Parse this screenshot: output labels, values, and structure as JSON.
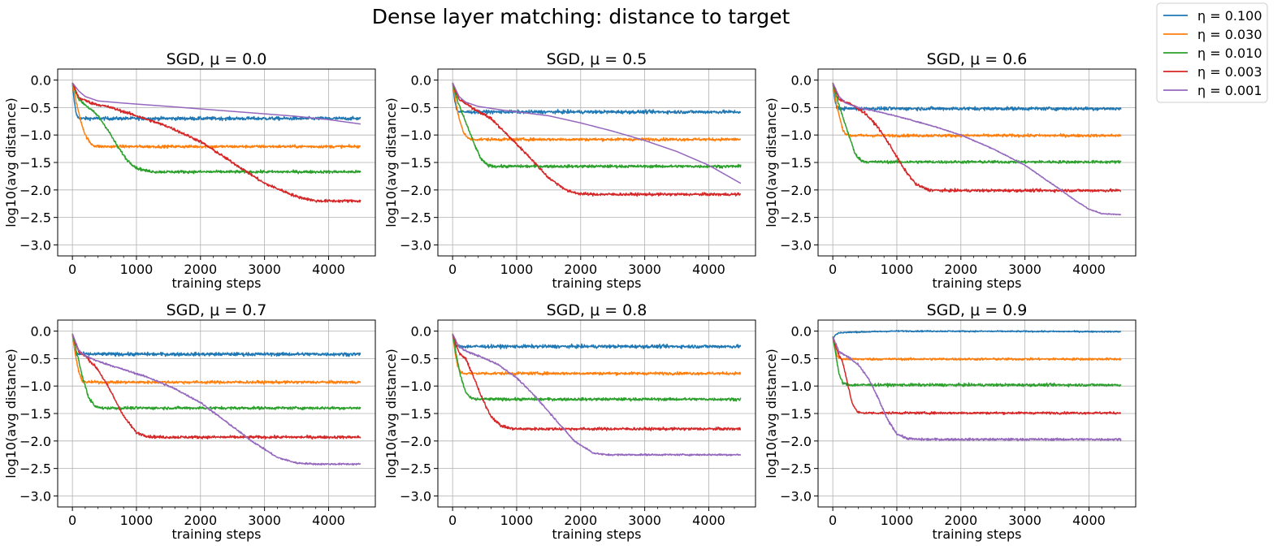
{
  "title": "Dense layer matching: distance to target",
  "legend": {
    "placement": "top-right, outside axes",
    "entries": [
      {
        "label": "η = 0.100",
        "color": "#1f77b4"
      },
      {
        "label": "η = 0.030",
        "color": "#ff7f0e"
      },
      {
        "label": "η = 0.010",
        "color": "#2ca02c"
      },
      {
        "label": "η = 0.003",
        "color": "#d62728"
      },
      {
        "label": "η = 0.001",
        "color": "#9467bd"
      }
    ]
  },
  "chart_data": [
    {
      "type": "line",
      "title": "SGD, μ = 0.0",
      "xlabel": "training steps",
      "ylabel": "log10(avg distance)",
      "xlim": [
        -230,
        4730
      ],
      "ylim": [
        -3.2,
        0.2
      ],
      "xticks": [
        0,
        1000,
        2000,
        3000,
        4000
      ],
      "xtick_labels": [
        "0",
        "1000",
        "2000",
        "3000",
        "4000"
      ],
      "yticks": [
        0.0,
        -0.5,
        -1.0,
        -1.5,
        -2.0,
        -2.5,
        -3.0
      ],
      "ytick_labels": [
        "0.0",
        "−0.5",
        "−1.0",
        "−1.5",
        "−2.0",
        "−2.5",
        "−3.0"
      ],
      "grid": true,
      "series": [
        {
          "name": "η = 0.100",
          "color": "#1f77b4",
          "noise": 0.03,
          "x": [
            0,
            30,
            60,
            100,
            150,
            200,
            4500
          ],
          "y": [
            -0.05,
            -0.4,
            -0.62,
            -0.7,
            -0.7,
            -0.7,
            -0.7
          ]
        },
        {
          "name": "η = 0.030",
          "color": "#ff7f0e",
          "noise": 0.025,
          "x": [
            0,
            60,
            120,
            200,
            280,
            350,
            450,
            4500
          ],
          "y": [
            -0.05,
            -0.4,
            -0.7,
            -1.0,
            -1.15,
            -1.2,
            -1.21,
            -1.21
          ]
        },
        {
          "name": "η = 0.010",
          "color": "#2ca02c",
          "noise": 0.025,
          "x": [
            0,
            100,
            250,
            400,
            550,
            700,
            850,
            1000,
            1150,
            1300,
            4500
          ],
          "y": [
            -0.05,
            -0.35,
            -0.5,
            -0.65,
            -0.9,
            -1.2,
            -1.45,
            -1.6,
            -1.65,
            -1.67,
            -1.67
          ]
        },
        {
          "name": "η = 0.003",
          "color": "#d62728",
          "noise": 0.025,
          "x": [
            0,
            100,
            300,
            600,
            1000,
            1500,
            2000,
            2500,
            3000,
            3500,
            3800,
            4000,
            4500
          ],
          "y": [
            -0.05,
            -0.32,
            -0.42,
            -0.5,
            -0.65,
            -0.85,
            -1.12,
            -1.5,
            -1.88,
            -2.12,
            -2.2,
            -2.2,
            -2.2
          ]
        },
        {
          "name": "η = 0.001",
          "color": "#9467bd",
          "noise": 0.0,
          "x": [
            0,
            100,
            200,
            400,
            800,
            1500,
            2500,
            3500,
            4000,
            4500
          ],
          "y": [
            -0.05,
            -0.2,
            -0.3,
            -0.38,
            -0.42,
            -0.48,
            -0.57,
            -0.66,
            -0.72,
            -0.8
          ]
        }
      ]
    },
    {
      "type": "line",
      "title": "SGD, μ = 0.5",
      "xlabel": "training steps",
      "ylabel": "log10(avg distance)",
      "xlim": [
        -230,
        4730
      ],
      "ylim": [
        -3.2,
        0.2
      ],
      "xticks": [
        0,
        1000,
        2000,
        3000,
        4000
      ],
      "xtick_labels": [
        "0",
        "1000",
        "2000",
        "3000",
        "4000"
      ],
      "yticks": [
        0.0,
        -0.5,
        -1.0,
        -1.5,
        -2.0,
        -2.5,
        -3.0
      ],
      "ytick_labels": [
        "0.0",
        "−0.5",
        "−1.0",
        "−1.5",
        "−2.0",
        "−2.5",
        "−3.0"
      ],
      "grid": true,
      "series": [
        {
          "name": "η = 0.100",
          "color": "#1f77b4",
          "noise": 0.03,
          "x": [
            0,
            30,
            60,
            100,
            150,
            4500
          ],
          "y": [
            -0.05,
            -0.35,
            -0.52,
            -0.58,
            -0.58,
            -0.58
          ]
        },
        {
          "name": "η = 0.030",
          "color": "#ff7f0e",
          "noise": 0.025,
          "x": [
            0,
            50,
            100,
            170,
            250,
            350,
            4500
          ],
          "y": [
            -0.05,
            -0.4,
            -0.7,
            -0.95,
            -1.07,
            -1.08,
            -1.08
          ]
        },
        {
          "name": "η = 0.010",
          "color": "#2ca02c",
          "noise": 0.025,
          "x": [
            0,
            80,
            150,
            250,
            350,
            450,
            550,
            650,
            4500
          ],
          "y": [
            -0.05,
            -0.4,
            -0.6,
            -0.9,
            -1.2,
            -1.45,
            -1.55,
            -1.57,
            -1.57
          ]
        },
        {
          "name": "η = 0.003",
          "color": "#d62728",
          "noise": 0.025,
          "x": [
            0,
            100,
            300,
            600,
            900,
            1200,
            1500,
            1800,
            2000,
            2200,
            4500
          ],
          "y": [
            -0.05,
            -0.35,
            -0.5,
            -0.7,
            -1.05,
            -1.4,
            -1.78,
            -2.02,
            -2.07,
            -2.08,
            -2.08
          ]
        },
        {
          "name": "η = 0.001",
          "color": "#9467bd",
          "noise": 0.0,
          "x": [
            0,
            100,
            200,
            400,
            800,
            1500,
            2000,
            2500,
            3000,
            3500,
            4000,
            4500
          ],
          "y": [
            -0.05,
            -0.3,
            -0.4,
            -0.48,
            -0.55,
            -0.65,
            -0.78,
            -0.93,
            -1.1,
            -1.3,
            -1.55,
            -1.88
          ]
        }
      ]
    },
    {
      "type": "line",
      "title": "SGD, μ = 0.6",
      "xlabel": "training steps",
      "ylabel": "log10(avg distance)",
      "xlim": [
        -230,
        4730
      ],
      "ylim": [
        -3.2,
        0.2
      ],
      "xticks": [
        0,
        1000,
        2000,
        3000,
        4000
      ],
      "xtick_labels": [
        "0",
        "1000",
        "2000",
        "3000",
        "4000"
      ],
      "yticks": [
        0.0,
        -0.5,
        -1.0,
        -1.5,
        -2.0,
        -2.5,
        -3.0
      ],
      "ytick_labels": [
        "0.0",
        "−0.5",
        "−1.0",
        "−1.5",
        "−2.0",
        "−2.5",
        "−3.0"
      ],
      "grid": true,
      "series": [
        {
          "name": "η = 0.100",
          "color": "#1f77b4",
          "noise": 0.03,
          "x": [
            0,
            30,
            60,
            100,
            4500
          ],
          "y": [
            -0.05,
            -0.35,
            -0.48,
            -0.52,
            -0.52
          ]
        },
        {
          "name": "η = 0.030",
          "color": "#ff7f0e",
          "noise": 0.025,
          "x": [
            0,
            50,
            100,
            150,
            200,
            280,
            4500
          ],
          "y": [
            -0.05,
            -0.4,
            -0.65,
            -0.88,
            -0.98,
            -1.01,
            -1.01
          ]
        },
        {
          "name": "η = 0.010",
          "color": "#2ca02c",
          "noise": 0.025,
          "x": [
            0,
            80,
            150,
            250,
            350,
            450,
            550,
            4500
          ],
          "y": [
            -0.05,
            -0.4,
            -0.65,
            -1.0,
            -1.35,
            -1.47,
            -1.49,
            -1.49
          ]
        },
        {
          "name": "η = 0.003",
          "color": "#d62728",
          "noise": 0.025,
          "x": [
            0,
            100,
            300,
            500,
            700,
            900,
            1100,
            1300,
            1500,
            1700,
            4500
          ],
          "y": [
            -0.05,
            -0.35,
            -0.45,
            -0.6,
            -0.85,
            -1.2,
            -1.6,
            -1.9,
            -2.0,
            -2.01,
            -2.01
          ]
        },
        {
          "name": "η = 0.001",
          "color": "#9467bd",
          "noise": 0.008,
          "x": [
            0,
            100,
            200,
            400,
            800,
            1200,
            1600,
            2000,
            2500,
            3000,
            3500,
            3800,
            4000,
            4200,
            4500
          ],
          "y": [
            -0.05,
            -0.3,
            -0.42,
            -0.5,
            -0.6,
            -0.72,
            -0.85,
            -1.0,
            -1.25,
            -1.55,
            -1.95,
            -2.2,
            -2.35,
            -2.43,
            -2.45
          ]
        }
      ]
    },
    {
      "type": "line",
      "title": "SGD, μ = 0.7",
      "xlabel": "training steps",
      "ylabel": "log10(avg distance)",
      "xlim": [
        -230,
        4730
      ],
      "ylim": [
        -3.2,
        0.2
      ],
      "xticks": [
        0,
        1000,
        2000,
        3000,
        4000
      ],
      "xtick_labels": [
        "0",
        "1000",
        "2000",
        "3000",
        "4000"
      ],
      "yticks": [
        0.0,
        -0.5,
        -1.0,
        -1.5,
        -2.0,
        -2.5,
        -3.0
      ],
      "ytick_labels": [
        "0.0",
        "−0.5",
        "−1.0",
        "−1.5",
        "−2.0",
        "−2.5",
        "−3.0"
      ],
      "grid": true,
      "series": [
        {
          "name": "η = 0.100",
          "color": "#1f77b4",
          "noise": 0.03,
          "x": [
            0,
            30,
            60,
            4500
          ],
          "y": [
            -0.05,
            -0.3,
            -0.42,
            -0.42
          ]
        },
        {
          "name": "η = 0.030",
          "color": "#ff7f0e",
          "noise": 0.025,
          "x": [
            0,
            50,
            100,
            150,
            220,
            4500
          ],
          "y": [
            -0.05,
            -0.45,
            -0.75,
            -0.9,
            -0.93,
            -0.93
          ]
        },
        {
          "name": "η = 0.010",
          "color": "#2ca02c",
          "noise": 0.025,
          "x": [
            0,
            80,
            150,
            250,
            350,
            450,
            4500
          ],
          "y": [
            -0.05,
            -0.45,
            -0.8,
            -1.2,
            -1.37,
            -1.4,
            -1.4
          ]
        },
        {
          "name": "η = 0.003",
          "color": "#d62728",
          "noise": 0.025,
          "x": [
            0,
            100,
            200,
            400,
            600,
            800,
            1000,
            1200,
            1400,
            4500
          ],
          "y": [
            -0.05,
            -0.38,
            -0.45,
            -0.7,
            -1.1,
            -1.55,
            -1.85,
            -1.92,
            -1.93,
            -1.93
          ]
        },
        {
          "name": "η = 0.001",
          "color": "#9467bd",
          "noise": 0.015,
          "x": [
            0,
            100,
            200,
            400,
            800,
            1200,
            1600,
            2000,
            2400,
            2800,
            3200,
            3500,
            3800,
            4500
          ],
          "y": [
            -0.05,
            -0.35,
            -0.45,
            -0.55,
            -0.7,
            -0.85,
            -1.05,
            -1.3,
            -1.65,
            -2.0,
            -2.3,
            -2.4,
            -2.42,
            -2.42
          ]
        }
      ]
    },
    {
      "type": "line",
      "title": "SGD, μ = 0.8",
      "xlabel": "training steps",
      "ylabel": "log10(avg distance)",
      "xlim": [
        -230,
        4730
      ],
      "ylim": [
        -3.2,
        0.2
      ],
      "xticks": [
        0,
        1000,
        2000,
        3000,
        4000
      ],
      "xtick_labels": [
        "0",
        "1000",
        "2000",
        "3000",
        "4000"
      ],
      "yticks": [
        0.0,
        -0.5,
        -1.0,
        -1.5,
        -2.0,
        -2.5,
        -3.0
      ],
      "ytick_labels": [
        "0.0",
        "−0.5",
        "−1.0",
        "−1.5",
        "−2.0",
        "−2.5",
        "−3.0"
      ],
      "grid": true,
      "series": [
        {
          "name": "η = 0.100",
          "color": "#1f77b4",
          "noise": 0.03,
          "x": [
            0,
            30,
            60,
            4500
          ],
          "y": [
            -0.05,
            -0.22,
            -0.28,
            -0.28
          ]
        },
        {
          "name": "η = 0.030",
          "color": "#ff7f0e",
          "noise": 0.025,
          "x": [
            0,
            40,
            80,
            130,
            180,
            4500
          ],
          "y": [
            -0.05,
            -0.4,
            -0.65,
            -0.75,
            -0.77,
            -0.77
          ]
        },
        {
          "name": "η = 0.010",
          "color": "#2ca02c",
          "noise": 0.025,
          "x": [
            0,
            60,
            120,
            200,
            280,
            350,
            4500
          ],
          "y": [
            -0.05,
            -0.45,
            -0.8,
            -1.1,
            -1.22,
            -1.24,
            -1.24
          ]
        },
        {
          "name": "η = 0.003",
          "color": "#d62728",
          "noise": 0.025,
          "x": [
            0,
            100,
            200,
            300,
            450,
            600,
            750,
            900,
            1000,
            4500
          ],
          "y": [
            -0.05,
            -0.4,
            -0.5,
            -0.75,
            -1.2,
            -1.55,
            -1.72,
            -1.77,
            -1.78,
            -1.78
          ]
        },
        {
          "name": "η = 0.001",
          "color": "#9467bd",
          "noise": 0.015,
          "x": [
            0,
            100,
            200,
            400,
            700,
            1000,
            1300,
            1600,
            1900,
            2200,
            2400,
            2600,
            4500
          ],
          "y": [
            -0.05,
            -0.28,
            -0.36,
            -0.45,
            -0.6,
            -0.85,
            -1.2,
            -1.6,
            -2.0,
            -2.22,
            -2.25,
            -2.25,
            -2.25
          ]
        }
      ]
    },
    {
      "type": "line",
      "title": "SGD, μ = 0.9",
      "xlabel": "training steps",
      "ylabel": "log10(avg distance)",
      "xlim": [
        -230,
        4730
      ],
      "ylim": [
        -3.2,
        0.2
      ],
      "xticks": [
        0,
        1000,
        2000,
        3000,
        4000
      ],
      "xtick_labels": [
        "0",
        "1000",
        "2000",
        "3000",
        "4000"
      ],
      "yticks": [
        0.0,
        -0.5,
        -1.0,
        -1.5,
        -2.0,
        -2.5,
        -3.0
      ],
      "ytick_labels": [
        "0.0",
        "−0.5",
        "−1.0",
        "−1.5",
        "−2.0",
        "−2.5",
        "−3.0"
      ],
      "grid": true,
      "series": [
        {
          "name": "η = 0.100",
          "color": "#1f77b4",
          "noise": 0.012,
          "x": [
            0,
            40,
            100,
            300,
            1000,
            4500
          ],
          "y": [
            -0.15,
            -0.07,
            -0.03,
            -0.02,
            0.0,
            -0.01
          ]
        },
        {
          "name": "η = 0.030",
          "color": "#ff7f0e",
          "noise": 0.02,
          "x": [
            0,
            40,
            80,
            150,
            4500
          ],
          "y": [
            -0.1,
            -0.35,
            -0.48,
            -0.51,
            -0.51
          ]
        },
        {
          "name": "η = 0.010",
          "color": "#2ca02c",
          "noise": 0.025,
          "x": [
            0,
            50,
            100,
            160,
            250,
            4500
          ],
          "y": [
            -0.1,
            -0.45,
            -0.8,
            -0.95,
            -0.98,
            -0.98
          ]
        },
        {
          "name": "η = 0.003",
          "color": "#d62728",
          "noise": 0.02,
          "x": [
            0,
            80,
            150,
            220,
            300,
            380,
            450,
            4500
          ],
          "y": [
            -0.1,
            -0.4,
            -0.55,
            -0.9,
            -1.3,
            -1.47,
            -1.49,
            -1.49
          ]
        },
        {
          "name": "η = 0.001",
          "color": "#9467bd",
          "noise": 0.02,
          "x": [
            0,
            100,
            250,
            400,
            550,
            700,
            850,
            1000,
            1150,
            1300,
            4500
          ],
          "y": [
            -0.1,
            -0.38,
            -0.48,
            -0.62,
            -0.85,
            -1.2,
            -1.6,
            -1.87,
            -1.95,
            -1.97,
            -1.97
          ]
        }
      ]
    }
  ]
}
